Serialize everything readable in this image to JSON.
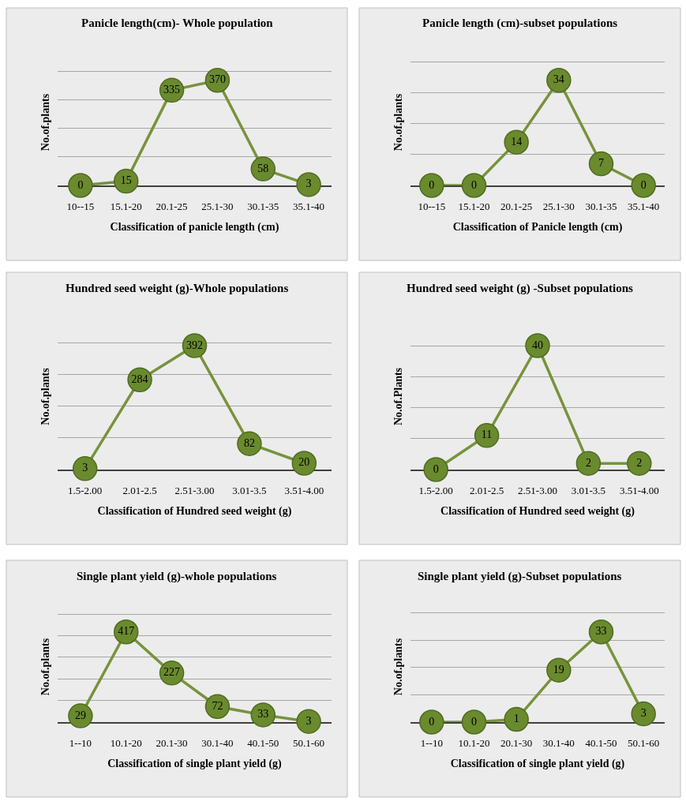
{
  "chart_data": [
    {
      "type": "line",
      "title": "Panicle length(cm)- Whole population",
      "xlabel": "Classification of panicle length (cm)",
      "ylabel": "No.of.plants",
      "categories": [
        "10--15",
        "15.1-20",
        "20.1-25",
        "25.1-30",
        "30.1-35",
        "35.1-40"
      ],
      "values": [
        0,
        15,
        335,
        370,
        58,
        3
      ],
      "color": "#77933c",
      "grid": "y",
      "data_labels": true,
      "marker": "circle",
      "tick_labels": "x"
    },
    {
      "type": "line",
      "title": "Panicle length (cm)-subset populations",
      "xlabel": "Classification of Panicle length (cm)",
      "ylabel": "No.of.plants",
      "categories": [
        "10--15",
        "15.1-20",
        "20.1-25",
        "25.1-30",
        "30.1-35",
        "35.1-40"
      ],
      "values": [
        0,
        0,
        14,
        34,
        7,
        0
      ],
      "color": "#77933c",
      "grid": "y",
      "data_labels": true,
      "marker": "circle",
      "tick_labels": "x"
    },
    {
      "type": "line",
      "title": "Hundred seed weight (g)-Whole populations",
      "xlabel": "Classification of Hundred seed weight (g)",
      "ylabel": "No.of.plants",
      "categories": [
        "1.5-2.00",
        "2.01-2.5",
        "2.51-3.00",
        "3.01-3.5",
        "3.51-4.00"
      ],
      "values": [
        3,
        284,
        392,
        82,
        20
      ],
      "color": "#77933c",
      "grid": "y",
      "data_labels": true,
      "marker": "circle",
      "tick_labels": "x"
    },
    {
      "type": "line",
      "title": "Hundred seed weight (g) -Subset populations",
      "xlabel": "Classification of Hundred seed weight (g)",
      "ylabel": "No.of.Plants",
      "categories": [
        "1.5-2.00",
        "2.01-2.5",
        "2.51-3.00",
        "3.01-3.5",
        "3.51-4.00"
      ],
      "values": [
        0,
        11,
        40,
        2,
        2
      ],
      "color": "#77933c",
      "grid": "y",
      "data_labels": true,
      "marker": "circle",
      "tick_labels": "x"
    },
    {
      "type": "line",
      "title": "Single plant yield (g)-whole populations",
      "xlabel": "Classification of single plant yield (g)",
      "ylabel": "No.of.plants",
      "categories": [
        "1--10",
        "10.1-20",
        "20.1-30",
        "30.1-40",
        "40.1-50",
        "50.1-60"
      ],
      "values": [
        29,
        417,
        227,
        72,
        33,
        3
      ],
      "color": "#77933c",
      "grid": "y",
      "data_labels": true,
      "marker": "circle",
      "tick_labels": "x"
    },
    {
      "type": "line",
      "title": "Single plant yield (g)-Subset populations",
      "xlabel": "Classification of single plant yield (g)",
      "ylabel": "No.of.plants",
      "categories": [
        "1--10",
        "10.1-20",
        "20.1-30",
        "30.1-40",
        "40.1-50",
        "50.1-60"
      ],
      "values": [
        0,
        0,
        1,
        19,
        33,
        3
      ],
      "color": "#77933c",
      "grid": "y",
      "data_labels": true,
      "marker": "circle",
      "tick_labels": "x"
    }
  ]
}
